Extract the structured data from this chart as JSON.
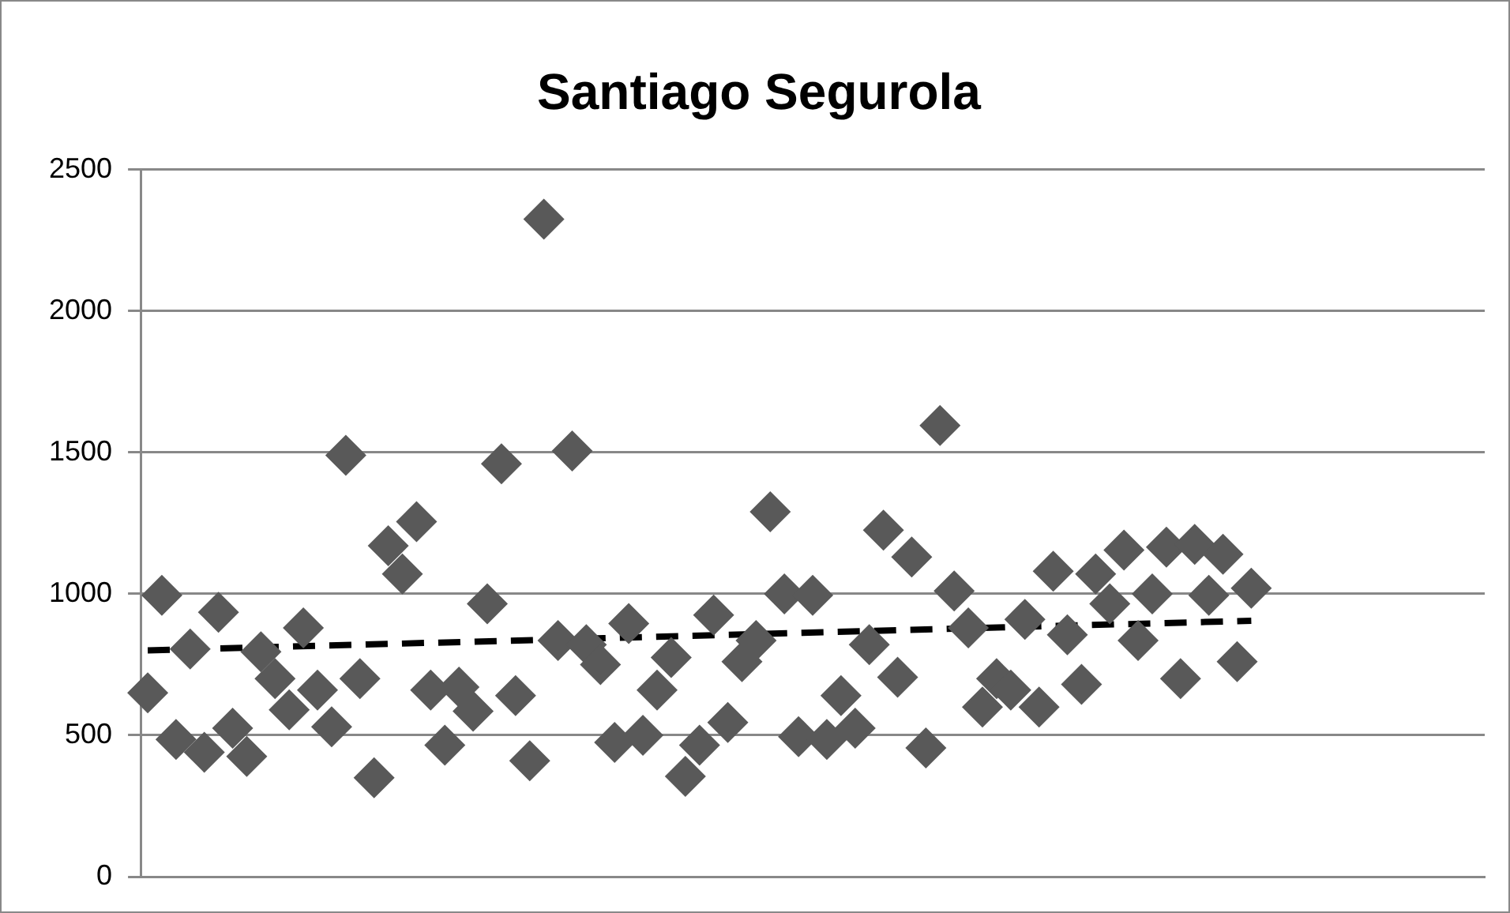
{
  "chart_data": {
    "type": "scatter",
    "title": "Santiago Segurola",
    "categories": [
      null,
      null,
      null,
      null,
      null,
      null,
      null,
      null,
      null,
      null,
      null,
      null,
      null,
      null,
      null,
      null,
      null,
      null,
      null,
      null,
      null,
      null,
      null,
      null,
      null,
      null,
      null,
      null,
      null,
      null,
      null,
      null,
      null,
      null,
      null,
      null,
      null,
      null,
      null,
      null,
      null,
      null,
      null,
      null,
      null,
      null,
      null,
      null,
      null,
      null,
      null,
      null,
      null,
      null,
      null,
      null,
      null,
      null,
      null,
      null,
      null,
      null,
      null,
      null,
      null,
      null,
      null,
      null,
      null,
      null,
      null,
      null,
      null,
      null,
      null,
      null,
      null,
      null,
      null,
      null,
      null,
      null,
      null,
      null,
      null,
      null,
      null,
      null,
      null,
      null,
      null,
      null,
      null,
      null,
      null
    ],
    "ylim": [
      0,
      2500
    ],
    "yticks": [
      0,
      500,
      1000,
      1500,
      2000,
      2500
    ],
    "grid": "y",
    "legend": false,
    "tick_labels": "y",
    "marker": "diamond",
    "series": [
      {
        "color": "#595959",
        "values": [
          650,
          995,
          485,
          805,
          440,
          935,
          525,
          425,
          795,
          700,
          590,
          880,
          660,
          530,
          1490,
          700,
          350,
          1170,
          1070,
          1255,
          660,
          465,
          670,
          585,
          965,
          1460,
          640,
          410,
          2325,
          835,
          1505,
          820,
          750,
          475,
          895,
          500,
          660,
          775,
          355,
          465,
          925,
          545,
          760,
          835,
          1290,
          1000,
          495,
          995,
          485,
          640,
          525,
          820,
          1225,
          705,
          1130,
          455,
          1595,
          1010,
          880,
          600,
          700,
          660,
          910,
          600,
          1080,
          855,
          680,
          1070,
          965,
          1155,
          835,
          1000,
          1165,
          700,
          1175,
          995,
          1140,
          760,
          1020,
          null,
          null,
          null,
          null,
          null,
          null,
          null,
          null,
          null,
          null,
          null,
          null,
          null,
          null,
          null,
          null
        ]
      },
      {
        "type": "line",
        "color": "#000000",
        "line_style": "dashed",
        "marker": "none",
        "values": [
          800,
          null,
          null,
          null,
          null,
          null,
          null,
          null,
          null,
          null,
          null,
          null,
          null,
          null,
          null,
          null,
          null,
          null,
          null,
          null,
          null,
          null,
          null,
          null,
          null,
          null,
          null,
          null,
          null,
          null,
          null,
          null,
          null,
          null,
          null,
          null,
          null,
          null,
          null,
          null,
          null,
          null,
          null,
          null,
          null,
          null,
          null,
          null,
          null,
          null,
          null,
          null,
          null,
          null,
          null,
          null,
          null,
          null,
          null,
          null,
          null,
          null,
          null,
          null,
          null,
          null,
          null,
          null,
          null,
          null,
          null,
          null,
          null,
          null,
          null,
          null,
          null,
          null,
          905,
          null,
          null,
          null,
          null,
          null,
          null,
          null,
          null,
          null,
          null,
          null,
          null,
          null,
          null,
          null,
          null
        ]
      }
    ]
  }
}
